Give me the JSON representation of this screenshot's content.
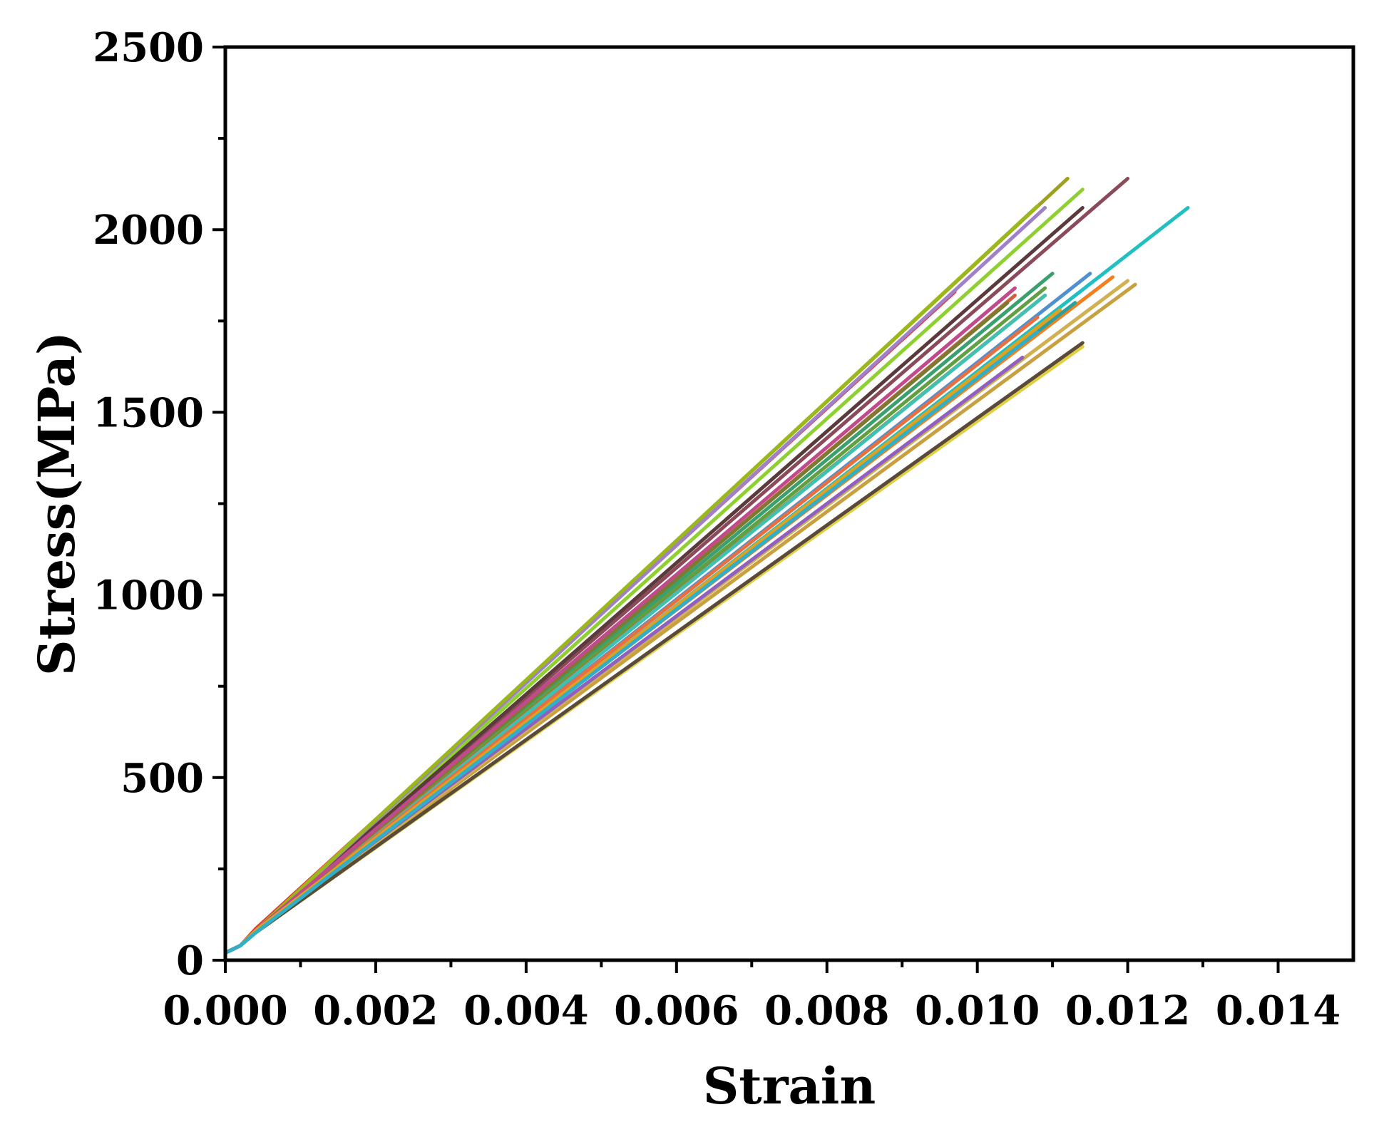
{
  "chart_data": {
    "type": "line",
    "title": "",
    "xlabel": "Strain",
    "ylabel": "Stress(MPa)",
    "xlim": [
      0,
      0.015
    ],
    "ylim": [
      0,
      2500
    ],
    "xticks": [
      0.0,
      0.002,
      0.004,
      0.006,
      0.008,
      0.01,
      0.012,
      0.014
    ],
    "xtick_labels": [
      "0.000",
      "0.002",
      "0.004",
      "0.006",
      "0.008",
      "0.010",
      "0.012",
      "0.014"
    ],
    "yticks": [
      0,
      500,
      1000,
      1500,
      2000,
      2500
    ],
    "ytick_labels": [
      "0",
      "500",
      "1000",
      "1500",
      "2000",
      "2500"
    ],
    "grid": false,
    "legend": "none",
    "series": [
      {
        "color": "#e8302a",
        "x": [
          0,
          0.0002,
          0.0004,
          0.0097
        ],
        "y": [
          20,
          40,
          85,
          1830
        ]
      },
      {
        "color": "#a0a020",
        "x": [
          0,
          0.0002,
          0.0004,
          0.0112
        ],
        "y": [
          20,
          40,
          80,
          2140
        ]
      },
      {
        "color": "#8ed030",
        "x": [
          0,
          0.0002,
          0.0004,
          0.0114
        ],
        "y": [
          20,
          40,
          80,
          2110
        ]
      },
      {
        "color": "#8b4a5a",
        "x": [
          0,
          0.0002,
          0.0004,
          0.012
        ],
        "y": [
          20,
          40,
          80,
          2140
        ]
      },
      {
        "color": "#5a3a3a",
        "x": [
          0,
          0.0002,
          0.0004,
          0.0114
        ],
        "y": [
          20,
          40,
          80,
          2060
        ]
      },
      {
        "color": "#a080c8",
        "x": [
          0,
          0.0002,
          0.0004,
          0.0109
        ],
        "y": [
          20,
          40,
          80,
          2060
        ]
      },
      {
        "color": "#9bb81a",
        "x": [
          0,
          0.0002,
          0.0004,
          0.0108
        ],
        "y": [
          20,
          40,
          80,
          2065
        ]
      },
      {
        "color": "#20c0c0",
        "x": [
          0,
          0.0002,
          0.0004,
          0.0128
        ],
        "y": [
          20,
          40,
          75,
          2060
        ]
      },
      {
        "color": "#3aa070",
        "x": [
          0,
          0.0002,
          0.0004,
          0.011
        ],
        "y": [
          20,
          40,
          80,
          1880
        ]
      },
      {
        "color": "#60a040",
        "x": [
          0,
          0.0002,
          0.0004,
          0.0109
        ],
        "y": [
          20,
          40,
          80,
          1840
        ]
      },
      {
        "color": "#5090d0",
        "x": [
          0,
          0.0002,
          0.0004,
          0.0115
        ],
        "y": [
          20,
          40,
          80,
          1880
        ]
      },
      {
        "color": "#f08020",
        "x": [
          0,
          0.0002,
          0.0004,
          0.0118
        ],
        "y": [
          20,
          40,
          80,
          1870
        ]
      },
      {
        "color": "#c8a040",
        "x": [
          0,
          0.0002,
          0.0004,
          0.0121
        ],
        "y": [
          20,
          40,
          75,
          1850
        ]
      },
      {
        "color": "#d0b050",
        "x": [
          0,
          0.0002,
          0.0004,
          0.012
        ],
        "y": [
          20,
          40,
          75,
          1860
        ]
      },
      {
        "color": "#e0d040",
        "x": [
          0,
          0.0002,
          0.0004,
          0.0114
        ],
        "y": [
          20,
          40,
          75,
          1680
        ]
      },
      {
        "color": "#5a4a3a",
        "x": [
          0,
          0.0002,
          0.0004,
          0.0114
        ],
        "y": [
          20,
          40,
          75,
          1690
        ]
      },
      {
        "color": "#b07030",
        "x": [
          0,
          0.0002,
          0.0004,
          0.0109
        ],
        "y": [
          20,
          40,
          80,
          1820
        ]
      },
      {
        "color": "#d06040",
        "x": [
          0,
          0.0002,
          0.0004,
          0.0105
        ],
        "y": [
          20,
          40,
          80,
          1820
        ]
      },
      {
        "color": "#2aa0a0",
        "x": [
          0,
          0.0002,
          0.0004,
          0.0113
        ],
        "y": [
          20,
          40,
          75,
          1800
        ]
      },
      {
        "color": "#40c0b0",
        "x": [
          0,
          0.0002,
          0.0004,
          0.0109
        ],
        "y": [
          20,
          40,
          75,
          1820
        ]
      },
      {
        "color": "#9060c0",
        "x": [
          0,
          0.0002,
          0.0004,
          0.0106
        ],
        "y": [
          20,
          40,
          80,
          1650
        ]
      },
      {
        "color": "#e87040",
        "x": [
          0,
          0.0002,
          0.0004,
          0.0108
        ],
        "y": [
          20,
          40,
          80,
          1760
        ]
      },
      {
        "color": "#7a7a30",
        "x": [
          0,
          0.0002,
          0.0004,
          0.0104
        ],
        "y": [
          20,
          40,
          80,
          1800
        ]
      },
      {
        "color": "#c04a8a",
        "x": [
          0,
          0.0002,
          0.0004,
          0.0105
        ],
        "y": [
          20,
          40,
          80,
          1840
        ]
      },
      {
        "color": "#e0a020",
        "x": [
          0,
          0.0002,
          0.0004,
          0.0111
        ],
        "y": [
          20,
          40,
          80,
          1780
        ]
      },
      {
        "color": "#30b0c8",
        "x": [
          0,
          0.0002,
          0.0004,
          0.0108
        ],
        "y": [
          20,
          40,
          75,
          1720
        ]
      }
    ]
  }
}
